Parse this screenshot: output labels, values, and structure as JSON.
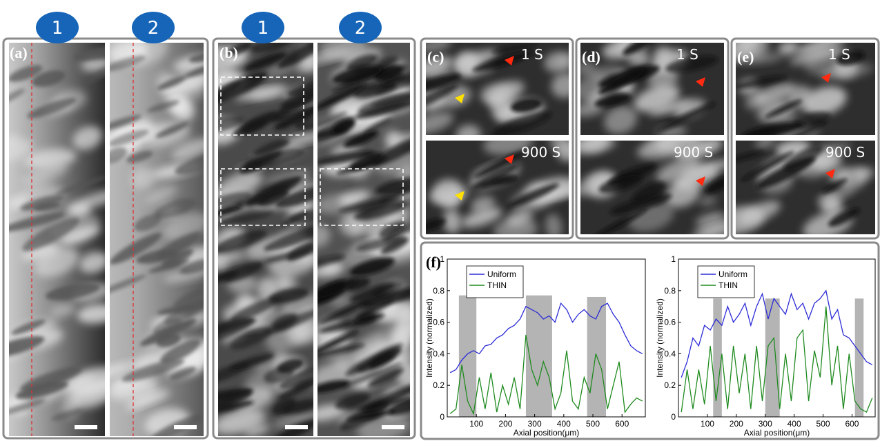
{
  "markers": [
    "1",
    "2",
    "1",
    "2"
  ],
  "panels": [
    {
      "label": "(a)"
    },
    {
      "label": "(b)"
    },
    {
      "label": "(c)",
      "times": [
        "1 S",
        "900 S"
      ]
    },
    {
      "label": "(d)",
      "times": [
        "1 S",
        "900 S"
      ]
    },
    {
      "label": "(e)",
      "times": [
        "1 S",
        "900 S"
      ]
    },
    {
      "label": "(f)"
    }
  ],
  "chart_data": [
    {
      "type": "line",
      "xlabel": "Axial position(μm)",
      "ylabel": "Intensity (normalized)",
      "x": [
        10,
        30,
        50,
        70,
        90,
        110,
        130,
        150,
        170,
        190,
        210,
        230,
        250,
        270,
        290,
        310,
        330,
        350,
        370,
        390,
        410,
        430,
        450,
        470,
        490,
        510,
        530,
        550,
        570,
        590,
        610,
        630,
        650,
        670
      ],
      "series": [
        {
          "name": "Uniform",
          "color": "#2b2bd6",
          "values": [
            0.28,
            0.3,
            0.36,
            0.4,
            0.42,
            0.4,
            0.45,
            0.46,
            0.5,
            0.52,
            0.56,
            0.58,
            0.62,
            0.7,
            0.68,
            0.66,
            0.62,
            0.64,
            0.6,
            0.72,
            0.68,
            0.6,
            0.65,
            0.68,
            0.64,
            0.62,
            0.7,
            0.72,
            0.65,
            0.6,
            0.52,
            0.45,
            0.42,
            0.4
          ]
        },
        {
          "name": "THIN",
          "color": "#1e8a1e",
          "values": [
            0.02,
            0.05,
            0.33,
            0.1,
            0.02,
            0.25,
            0.05,
            0.28,
            0.03,
            0.2,
            0.08,
            0.25,
            0.05,
            0.52,
            0.3,
            0.2,
            0.35,
            0.25,
            0.05,
            0.15,
            0.42,
            0.1,
            0.05,
            0.25,
            0.15,
            0.4,
            0.3,
            0.05,
            0.2,
            0.35,
            0.03,
            0.08,
            0.12,
            0.1
          ]
        }
      ],
      "shaded_regions": [
        {
          "x": [
            40,
            100
          ],
          "top": 0.77
        },
        {
          "x": [
            270,
            360
          ],
          "top": 0.77
        },
        {
          "x": [
            480,
            545
          ],
          "top": 0.76
        }
      ],
      "shade_color": "#b4b4b4",
      "xlim": [
        0,
        680
      ],
      "xticks": [
        100,
        200,
        300,
        400,
        500,
        600
      ],
      "ylim": [
        0,
        1
      ],
      "yticks": [
        0,
        0.2,
        0.4,
        0.6,
        0.8,
        1
      ],
      "legend": "upper left"
    },
    {
      "type": "line",
      "xlabel": "Axial position(μm)",
      "ylabel": "Intensity (normalized)",
      "x": [
        10,
        30,
        50,
        70,
        90,
        110,
        130,
        150,
        170,
        190,
        210,
        230,
        250,
        270,
        290,
        310,
        330,
        350,
        370,
        390,
        410,
        430,
        450,
        470,
        490,
        510,
        530,
        550,
        570,
        590,
        610,
        630,
        650,
        670
      ],
      "series": [
        {
          "name": "Uniform",
          "color": "#2b2bd6",
          "values": [
            0.25,
            0.35,
            0.5,
            0.45,
            0.58,
            0.55,
            0.62,
            0.58,
            0.7,
            0.6,
            0.65,
            0.72,
            0.58,
            0.7,
            0.78,
            0.62,
            0.75,
            0.7,
            0.65,
            0.78,
            0.68,
            0.72,
            0.62,
            0.72,
            0.75,
            0.8,
            0.62,
            0.68,
            0.52,
            0.5,
            0.45,
            0.4,
            0.35,
            0.33
          ]
        },
        {
          "name": "THIN",
          "color": "#1e8a1e",
          "values": [
            0.03,
            0.3,
            0.05,
            0.3,
            0.08,
            0.45,
            0.1,
            0.4,
            0.05,
            0.45,
            0.15,
            0.4,
            0.05,
            0.45,
            0.1,
            0.45,
            0.5,
            0.05,
            0.4,
            0.1,
            0.5,
            0.55,
            0.1,
            0.42,
            0.25,
            0.7,
            0.2,
            0.45,
            0.05,
            0.4,
            0.1,
            0.05,
            0.03,
            0.12
          ]
        }
      ],
      "shaded_regions": [
        {
          "x": [
            120,
            150
          ],
          "top": 0.75
        },
        {
          "x": [
            300,
            350
          ],
          "top": 0.75
        },
        {
          "x": [
            610,
            640
          ],
          "top": 0.75
        }
      ],
      "shade_color": "#b4b4b4",
      "xlim": [
        0,
        680
      ],
      "xticks": [
        100,
        200,
        300,
        400,
        500,
        600
      ],
      "ylim": [
        0,
        1
      ],
      "yticks": [
        0,
        0.2,
        0.4,
        0.6,
        0.8,
        1
      ],
      "legend": "upper left"
    }
  ]
}
